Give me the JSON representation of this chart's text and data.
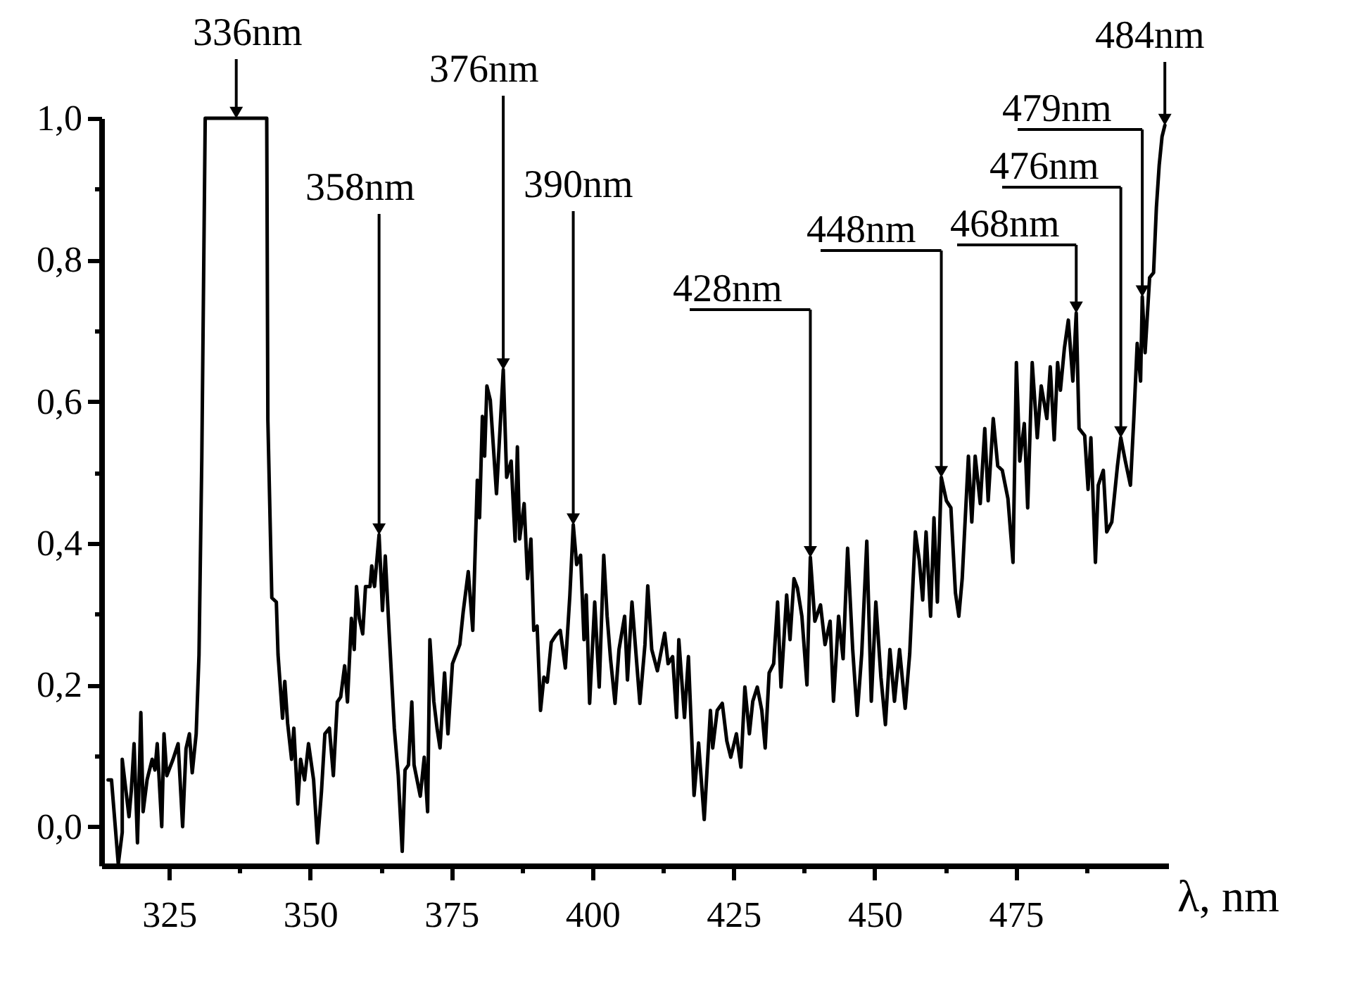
{
  "chart_data": {
    "type": "line",
    "xlabel": "λ, nm",
    "xlim": [
      313,
      502
    ],
    "ylim": [
      -0.055,
      1.0
    ],
    "xticks": [
      325,
      {
        "value": 337.5,
        "label": null
      },
      350,
      {
        "value": 362.5,
        "label": null
      },
      375,
      {
        "value": 387.5,
        "label": null
      },
      400,
      {
        "value": 412.5,
        "label": null
      },
      425,
      {
        "value": 437.5,
        "label": null
      },
      450,
      {
        "value": 462.5,
        "label": null
      },
      475,
      {
        "value": 487.5,
        "label": null
      }
    ],
    "yticks": [
      {
        "value": 0,
        "label": "0,0"
      },
      {
        "value": 0.1,
        "label": null
      },
      {
        "value": 0.2,
        "label": "0,2"
      },
      {
        "value": 0.3,
        "label": null
      },
      {
        "value": 0.4,
        "label": "0,4"
      },
      {
        "value": 0.5,
        "label": null
      },
      {
        "value": 0.6,
        "label": "0,6"
      },
      {
        "value": 0.7,
        "label": null
      },
      {
        "value": 0.8,
        "label": "0,8"
      },
      {
        "value": 0.9,
        "label": null
      },
      {
        "value": 1.0,
        "label": "1,0"
      }
    ],
    "x": [
      314.2,
      314.8,
      316,
      316.7,
      316.7,
      317.9,
      318.3,
      318.8,
      319.4,
      320,
      320.4,
      321.1,
      322,
      322.5,
      322.9,
      323.7,
      324.1,
      324.6,
      325.7,
      326.6,
      327.4,
      328,
      328.6,
      329.1,
      329.8,
      330.3,
      330.8,
      331.4,
      342.3,
      342.5,
      343.2,
      344,
      344.3,
      345.1,
      345.5,
      346,
      346.7,
      347.1,
      347.8,
      348.3,
      349,
      349.7,
      350.6,
      351.3,
      352,
      352.6,
      353.4,
      354.1,
      354.8,
      355.4,
      356.1,
      356.6,
      357.3,
      357.8,
      358.2,
      358.7,
      359.3,
      359.8,
      360.6,
      360.9,
      361.4,
      362.2,
      362.8,
      363.3,
      364,
      364.9,
      365.6,
      366.3,
      366.8,
      367.4,
      368,
      368.4,
      369.5,
      370.2,
      370.8,
      371.2,
      371.9,
      372.5,
      373,
      373.8,
      374.4,
      375.2,
      376.5,
      377.1,
      378,
      378.8,
      379.6,
      380,
      380.5,
      380.9,
      381.3,
      381.9,
      383,
      384.2,
      384.8,
      385.6,
      386.3,
      386.7,
      387.1,
      387.9,
      388.5,
      389.1,
      389.6,
      390.2,
      390.8,
      391.4,
      392,
      392.7,
      393.5,
      394.3,
      395.2,
      396,
      396.6,
      397.2,
      397.9,
      398.5,
      398.9,
      399.5,
      400.4,
      401.2,
      402,
      402.6,
      403.2,
      404,
      404.7,
      405.7,
      406.2,
      407,
      408.4,
      409.3,
      409.8,
      410.5,
      411.5,
      412.8,
      413.4,
      414.2,
      414.9,
      415.3,
      416.3,
      417,
      418,
      418.8,
      419.8,
      420.9,
      421.3,
      422.1,
      423,
      423.8,
      424.5,
      425.5,
      426.3,
      427,
      427.8,
      428.4,
      429.2,
      430,
      430.6,
      431.3,
      432.1,
      432.8,
      433.4,
      434.4,
      435,
      435.7,
      436.3,
      437.1,
      438,
      438.6,
      439.4,
      440.4,
      441.2,
      442.1,
      442.7,
      443.6,
      444.4,
      445.2,
      446.1,
      446.9,
      447.7,
      448.6,
      449.4,
      450.2,
      451.1,
      451.9,
      452.7,
      453.5,
      454.4,
      455.4,
      456.2,
      457.2,
      457.9,
      458.5,
      459.1,
      459.9,
      460.5,
      461.1,
      461.8,
      462.7,
      463.5,
      464.3,
      464.9,
      465.5,
      466.6,
      467.2,
      467.8,
      468.7,
      469.5,
      470.1,
      471,
      471.8,
      472.6,
      473.6,
      474.5,
      475.1,
      475.7,
      476.5,
      477.1,
      477.9,
      478.8,
      479.5,
      480.5,
      481.1,
      481.8,
      482.4,
      482.9,
      483.6,
      484.3,
      485.1,
      485.7,
      486.2,
      487.2,
      487.8,
      488.3,
      489.1,
      489.6,
      490.5,
      491.1,
      492,
      493,
      493.6,
      494.4,
      495.3,
      495.9,
      496.5,
      497.1,
      497.4,
      497.9,
      498.7,
      499.4,
      499.9,
      500.4,
      500.9,
      501.4
    ],
    "series": [
      {
        "color": "#000000",
        "values": [
          0.066,
          0.066,
          -0.053,
          -0.008,
          0.095,
          0.014,
          0.05,
          0.117,
          -0.023,
          0.161,
          0.021,
          0.066,
          0.095,
          0.08,
          0.117,
          0.0,
          0.131,
          0.072,
          0.095,
          0.117,
          0.0,
          0.11,
          0.131,
          0.076,
          0.131,
          0.242,
          0.522,
          1.0,
          1.0,
          0.574,
          0.323,
          0.317,
          0.243,
          0.153,
          0.205,
          0.146,
          0.095,
          0.139,
          0.032,
          0.095,
          0.066,
          0.117,
          0.066,
          -0.023,
          0.05,
          0.131,
          0.139,
          0.072,
          0.176,
          0.183,
          0.227,
          0.176,
          0.294,
          0.25,
          0.339,
          0.294,
          0.272,
          0.339,
          0.339,
          0.368,
          0.339,
          0.412,
          0.305,
          0.382,
          0.272,
          0.139,
          0.072,
          -0.035,
          0.08,
          0.087,
          0.176,
          0.087,
          0.043,
          0.098,
          0.021,
          0.264,
          0.177,
          0.137,
          0.111,
          0.217,
          0.131,
          0.23,
          0.257,
          0.303,
          0.36,
          0.277,
          0.489,
          0.436,
          0.579,
          0.523,
          0.622,
          0.602,
          0.47,
          0.645,
          0.493,
          0.516,
          0.403,
          0.536,
          0.406,
          0.456,
          0.35,
          0.406,
          0.277,
          0.283,
          0.164,
          0.211,
          0.204,
          0.26,
          0.27,
          0.277,
          0.224,
          0.327,
          0.426,
          0.37,
          0.383,
          0.264,
          0.327,
          0.174,
          0.317,
          0.197,
          0.383,
          0.297,
          0.237,
          0.174,
          0.25,
          0.297,
          0.207,
          0.317,
          0.174,
          0.257,
          0.34,
          0.25,
          0.22,
          0.273,
          0.23,
          0.24,
          0.154,
          0.264,
          0.154,
          0.24,
          0.044,
          0.118,
          0.01,
          0.164,
          0.111,
          0.164,
          0.174,
          0.121,
          0.098,
          0.131,
          0.084,
          0.197,
          0.131,
          0.177,
          0.197,
          0.164,
          0.111,
          0.217,
          0.23,
          0.317,
          0.197,
          0.327,
          0.264,
          0.35,
          0.337,
          0.297,
          0.2,
          0.38,
          0.29,
          0.313,
          0.257,
          0.29,
          0.177,
          0.297,
          0.237,
          0.393,
          0.25,
          0.157,
          0.244,
          0.403,
          0.177,
          0.317,
          0.211,
          0.144,
          0.25,
          0.177,
          0.25,
          0.167,
          0.244,
          0.416,
          0.376,
          0.32,
          0.416,
          0.297,
          0.436,
          0.317,
          0.493,
          0.46,
          0.45,
          0.33,
          0.297,
          0.35,
          0.523,
          0.43,
          0.523,
          0.456,
          0.562,
          0.46,
          0.576,
          0.509,
          0.503,
          0.463,
          0.373,
          0.655,
          0.516,
          0.569,
          0.45,
          0.655,
          0.549,
          0.622,
          0.576,
          0.649,
          0.546,
          0.655,
          0.616,
          0.675,
          0.715,
          0.629,
          0.725,
          0.562,
          0.552,
          0.476,
          0.549,
          0.373,
          0.482,
          0.503,
          0.416,
          0.43,
          0.509,
          0.549,
          0.516,
          0.482,
          0.576,
          0.682,
          0.629,
          0.748,
          0.669,
          0.775,
          0.782,
          0.874,
          0.934,
          0.974,
          0.99
        ]
      }
    ],
    "annotations": [
      {
        "text": "336nm",
        "x": 336.9,
        "y": 1.0
      },
      {
        "text": "358nm",
        "x": 362.2,
        "y": 0.412
      },
      {
        "text": "376nm",
        "x": 384.2,
        "y": 0.645
      },
      {
        "text": "390nm",
        "x": 396.6,
        "y": 0.426
      },
      {
        "text": "428nm",
        "x": 438.6,
        "y": 0.38
      },
      {
        "text": "448nm",
        "x": 461.8,
        "y": 0.493
      },
      {
        "text": "468nm",
        "x": 485.7,
        "y": 0.725
      },
      {
        "text": "476nm",
        "x": 493.6,
        "y": 0.549
      },
      {
        "text": "479nm",
        "x": 497.4,
        "y": 0.748
      },
      {
        "text": "484nm",
        "x": 501.4,
        "y": 0.99
      }
    ]
  }
}
